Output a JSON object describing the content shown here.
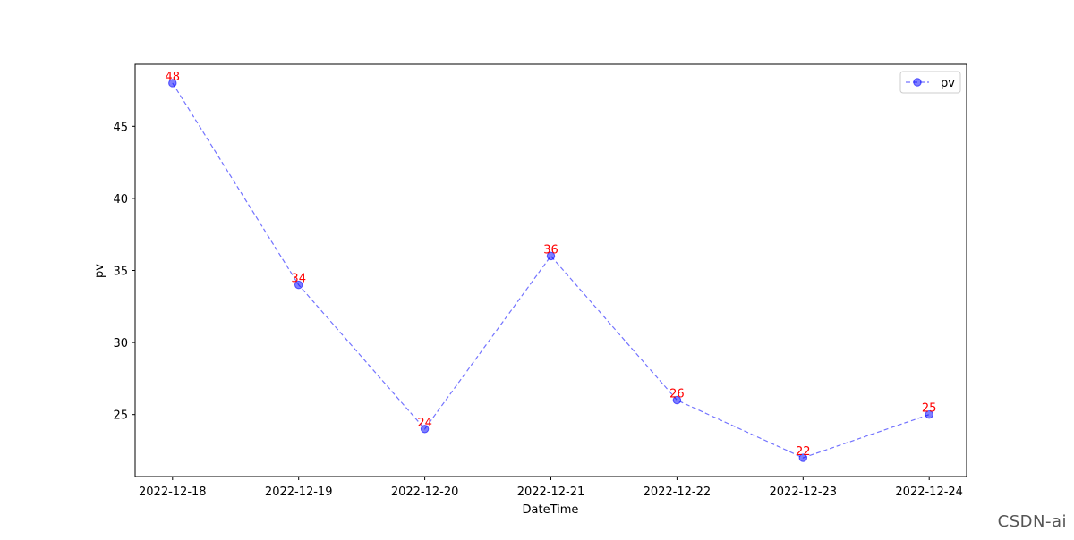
{
  "chart_data": {
    "type": "line",
    "x": [
      "2022-12-18",
      "2022-12-19",
      "2022-12-20",
      "2022-12-21",
      "2022-12-22",
      "2022-12-23",
      "2022-12-24"
    ],
    "series": [
      {
        "name": "pv",
        "values": [
          48,
          34,
          24,
          36,
          26,
          22,
          25
        ],
        "color": "#0000ff",
        "line_style": "dashed",
        "marker": "circle"
      }
    ],
    "data_labels": [
      "48",
      "34",
      "24",
      "36",
      "26",
      "22",
      "25"
    ],
    "data_label_color": "#ff0000",
    "xlabel": "DateTime",
    "ylabel": "pv",
    "ylim": [
      20.7,
      49.3
    ],
    "yticks": [
      25,
      30,
      35,
      40,
      45
    ],
    "grid": false,
    "legend": "top-right"
  },
  "watermark": "CSDN-ai"
}
